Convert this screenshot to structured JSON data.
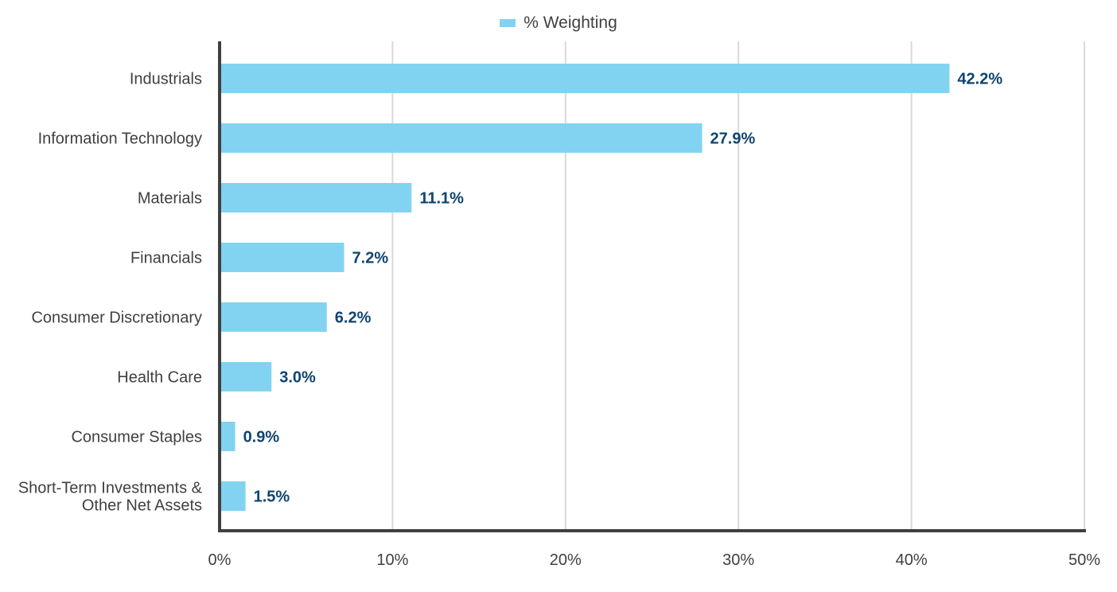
{
  "chart_data": {
    "type": "bar",
    "orientation": "horizontal",
    "categories": [
      "Industrials",
      "Information Technology",
      "Materials",
      "Financials",
      "Consumer Discretionary",
      "Health Care",
      "Consumer Staples",
      "Short-Term Investments & Other Net Assets"
    ],
    "category_lines": [
      [
        "Industrials"
      ],
      [
        "Information Technology"
      ],
      [
        "Materials"
      ],
      [
        "Financials"
      ],
      [
        "Consumer Discretionary"
      ],
      [
        "Health Care"
      ],
      [
        "Consumer Staples"
      ],
      [
        "Short-Term Investments &",
        "Other Net Assets"
      ]
    ],
    "series": [
      {
        "name": "% Weighting",
        "values": [
          42.2,
          27.9,
          11.1,
          7.2,
          6.2,
          3.0,
          0.9,
          1.5
        ],
        "data_labels": [
          "42.2%",
          "27.9%",
          "11.1%",
          "7.2%",
          "6.2%",
          "3.0%",
          "0.9%",
          "1.5%"
        ]
      }
    ],
    "xlim": [
      0,
      50
    ],
    "x_ticks": [
      0,
      10,
      20,
      30,
      40,
      50
    ],
    "x_tick_labels": [
      "0%",
      "10%",
      "20%",
      "30%",
      "40%",
      "50%"
    ],
    "grid": true,
    "legend_position": "top-center",
    "colors": {
      "bar": "#82d3f1",
      "data_label": "#0f4471",
      "axis": "#404040",
      "grid": "#d9d9d9",
      "text": "#404040"
    }
  }
}
